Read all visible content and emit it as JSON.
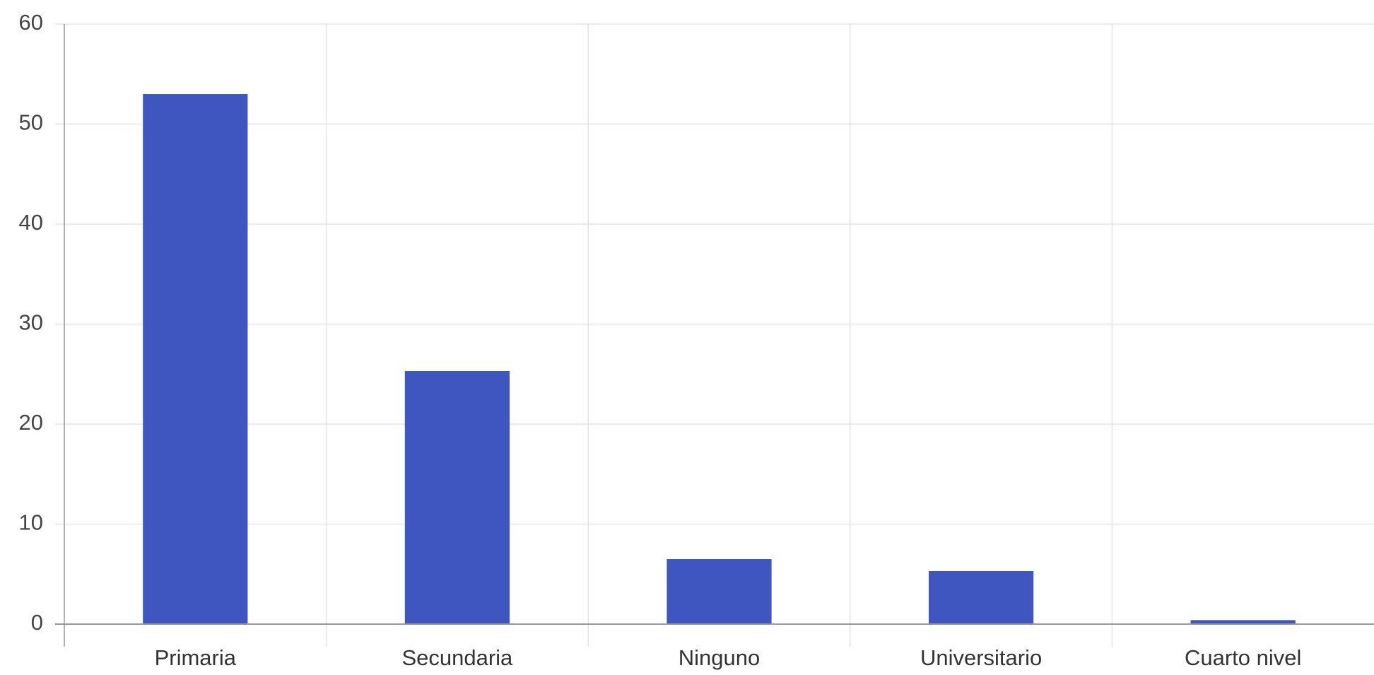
{
  "chart_data": {
    "type": "bar",
    "title": "",
    "xlabel": "",
    "ylabel": "",
    "categories": [
      "Primaria",
      "Secundaria",
      "Ninguno",
      "Universitario",
      "Cuarto nivel"
    ],
    "values": [
      53,
      25.3,
      6.5,
      5.3,
      0.4
    ],
    "ylim": [
      0,
      60
    ],
    "yticks": [
      0,
      10,
      20,
      30,
      40,
      50,
      60
    ],
    "grid": true,
    "legend": "none",
    "colors": {
      "bar": "#3f56c0",
      "grid": "#e3e3e3",
      "axis": "#999999"
    }
  }
}
